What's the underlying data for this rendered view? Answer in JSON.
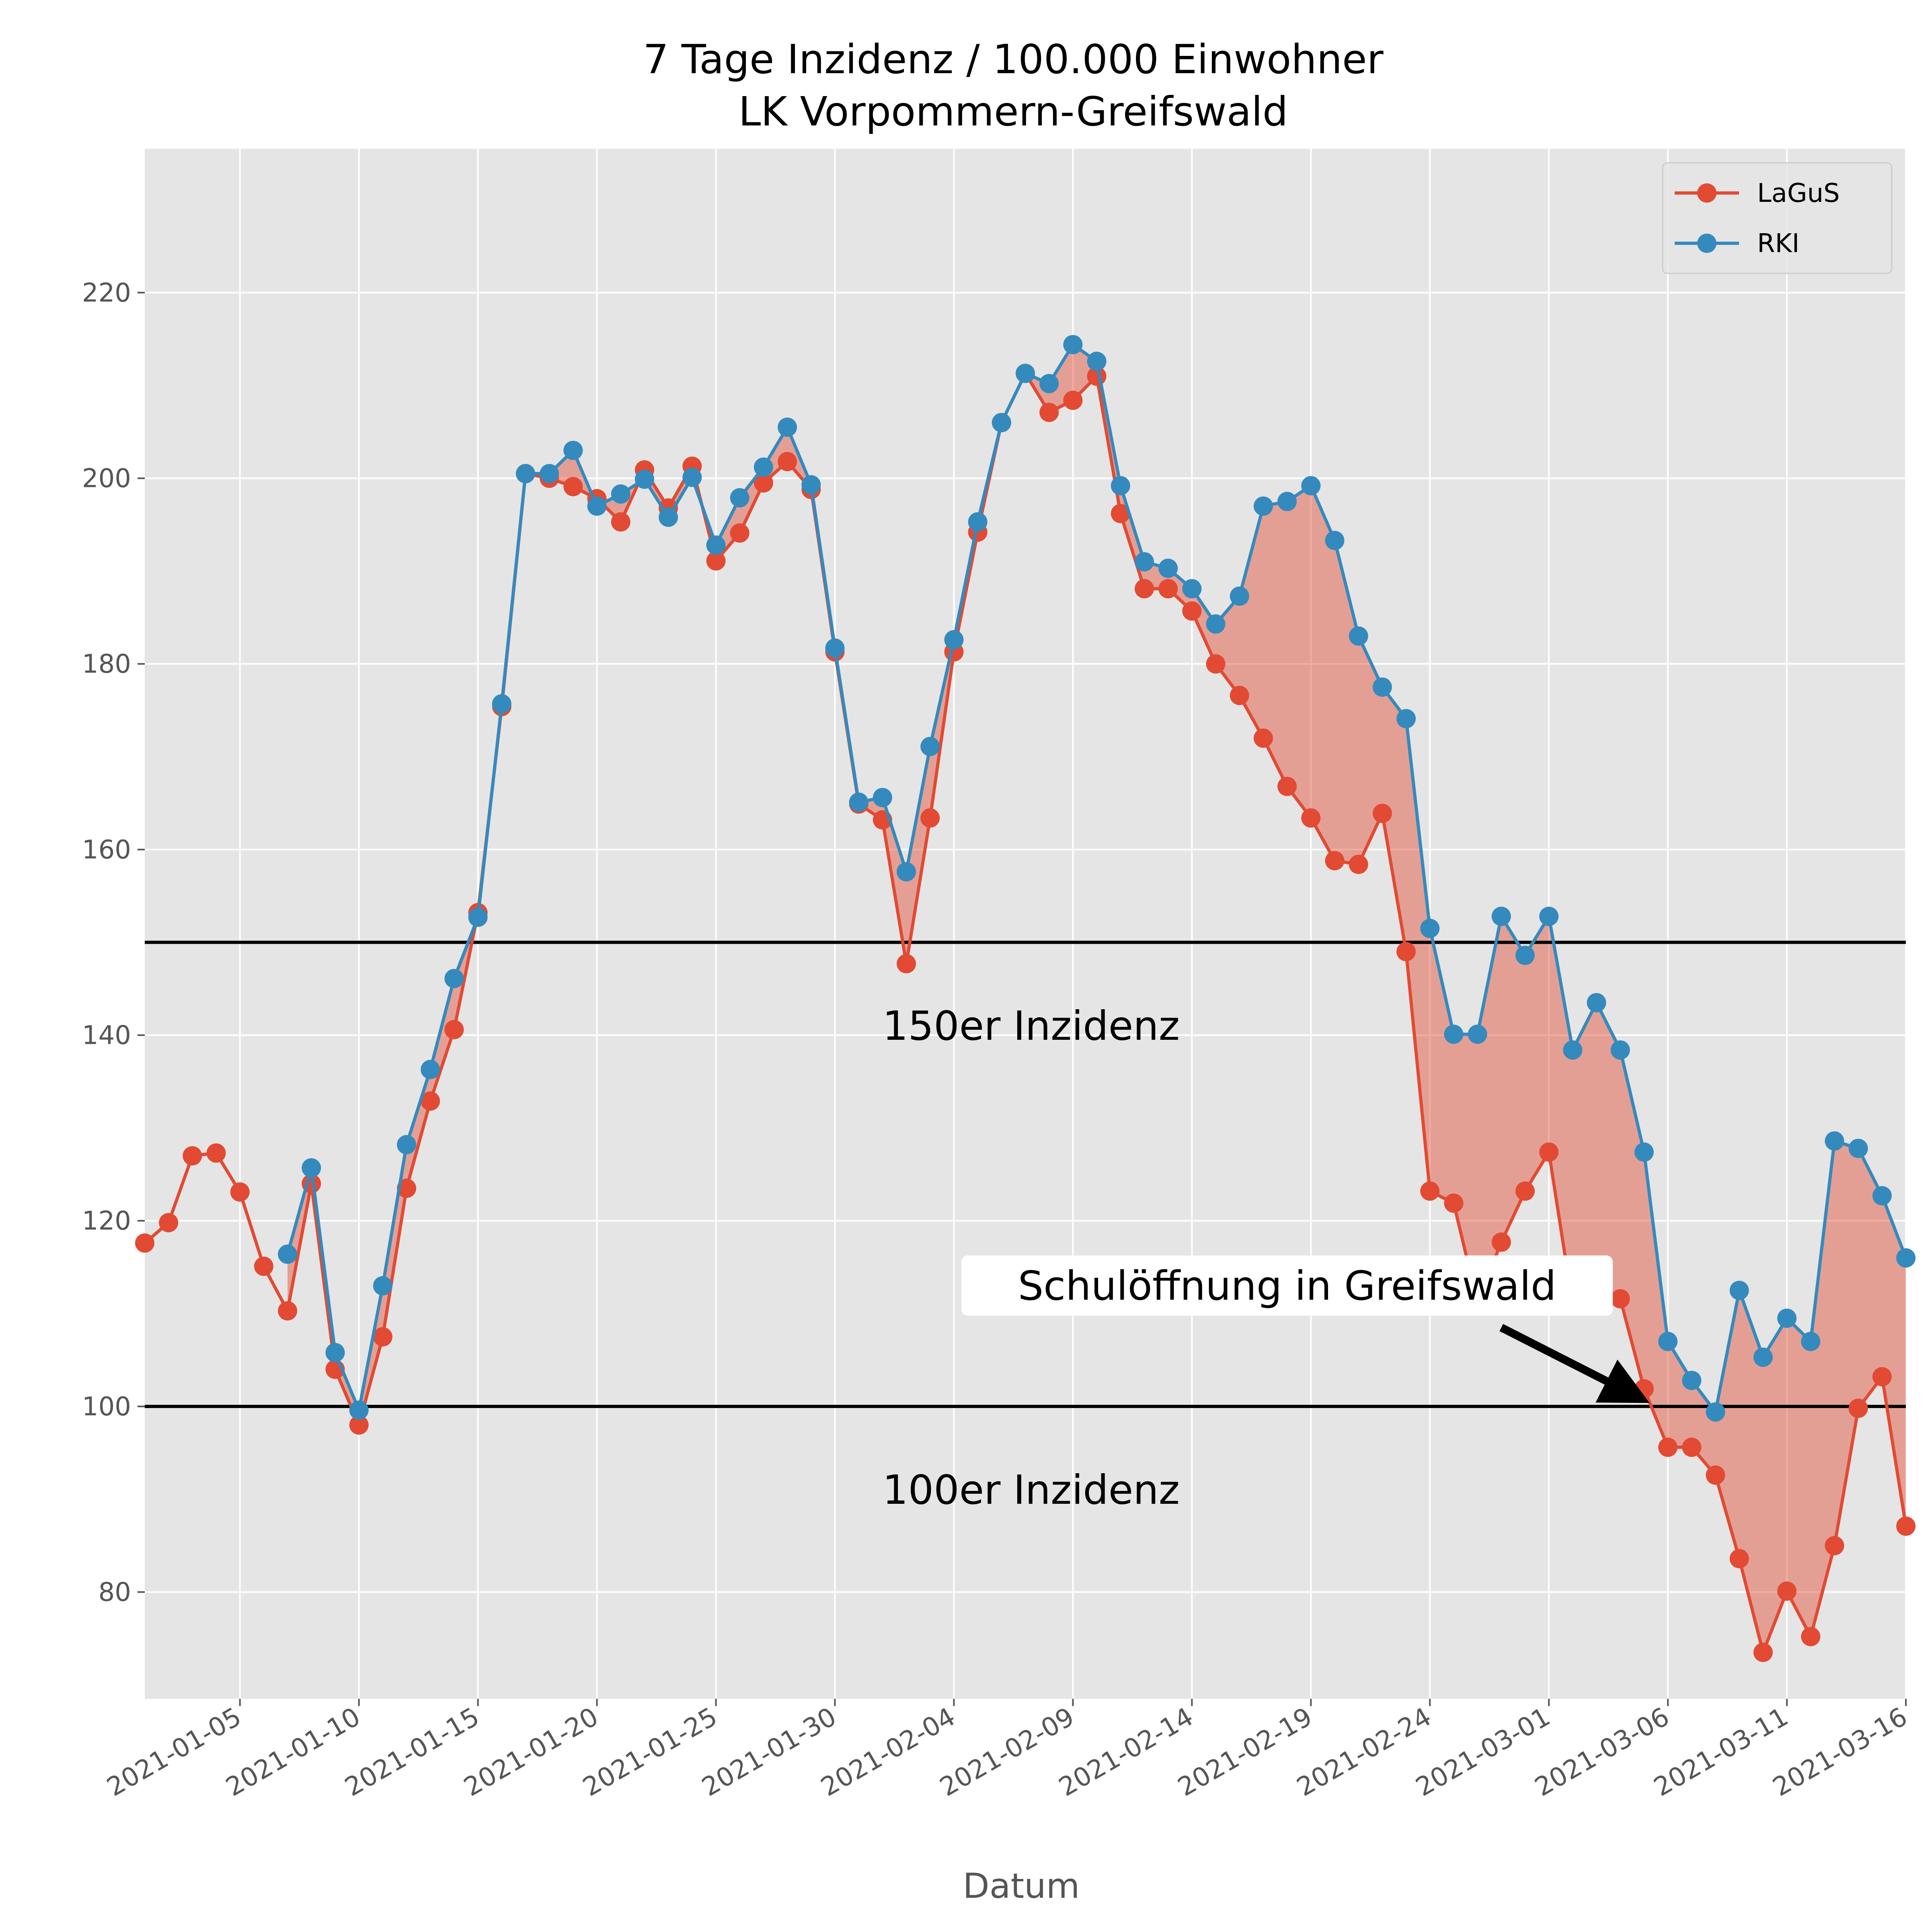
{
  "chart_data": {
    "type": "line",
    "title": "7 Tage Inzidenz / 100.000 Einwohner",
    "subtitle": "LK Vorpommern-Greifswald",
    "xlabel": "Datum",
    "ylabel": "",
    "x_start": "2021-01-01",
    "x_end": "2021-03-16",
    "ylim": [
      68.5,
      235.5
    ],
    "yticks": [
      80,
      100,
      120,
      140,
      160,
      180,
      200,
      220
    ],
    "xticks": [
      "2021-01-05",
      "2021-01-10",
      "2021-01-15",
      "2021-01-20",
      "2021-01-25",
      "2021-01-30",
      "2021-02-04",
      "2021-02-09",
      "2021-02-14",
      "2021-02-19",
      "2021-02-24",
      "2021-03-01",
      "2021-03-06",
      "2021-03-11",
      "2021-03-16"
    ],
    "grid": true,
    "legend_position": "top-right",
    "fill_between": {
      "color": "#E24A33",
      "opacity": 0.45
    },
    "series": [
      {
        "name": "LaGuS",
        "color": "#E24A33",
        "points": [
          [
            "2021-01-01",
            117.6
          ],
          [
            "2021-01-02",
            119.8
          ],
          [
            "2021-01-03",
            127.0
          ],
          [
            "2021-01-04",
            127.3
          ],
          [
            "2021-01-05",
            123.1
          ],
          [
            "2021-01-06",
            115.1
          ],
          [
            "2021-01-07",
            110.3
          ],
          [
            "2021-01-08",
            124.0
          ],
          [
            "2021-01-09",
            104.0
          ],
          [
            "2021-01-10",
            98.0
          ],
          [
            "2021-01-11",
            107.5
          ],
          [
            "2021-01-12",
            123.5
          ],
          [
            "2021-01-13",
            132.9
          ],
          [
            "2021-01-14",
            140.6
          ],
          [
            "2021-01-15",
            153.2
          ],
          [
            "2021-01-16",
            175.4
          ],
          [
            "2021-01-17",
            200.5
          ],
          [
            "2021-01-18",
            200.0
          ],
          [
            "2021-01-19",
            199.1
          ],
          [
            "2021-01-20",
            197.8
          ],
          [
            "2021-01-21",
            195.3
          ],
          [
            "2021-01-22",
            200.9
          ],
          [
            "2021-01-23",
            196.8
          ],
          [
            "2021-01-24",
            201.3
          ],
          [
            "2021-01-25",
            191.1
          ],
          [
            "2021-01-26",
            194.1
          ],
          [
            "2021-01-27",
            199.5
          ],
          [
            "2021-01-28",
            201.8
          ],
          [
            "2021-01-29",
            198.8
          ],
          [
            "2021-01-30",
            181.3
          ],
          [
            "2021-01-31",
            164.9
          ],
          [
            "2021-02-01",
            163.2
          ],
          [
            "2021-02-02",
            147.7
          ],
          [
            "2021-02-03",
            163.4
          ],
          [
            "2021-02-04",
            181.3
          ],
          [
            "2021-02-05",
            194.2
          ],
          [
            "2021-02-06",
            206.0
          ],
          [
            "2021-02-07",
            211.3
          ],
          [
            "2021-02-08",
            207.1
          ],
          [
            "2021-02-09",
            208.4
          ],
          [
            "2021-02-10",
            211.0
          ],
          [
            "2021-02-11",
            196.2
          ],
          [
            "2021-02-12",
            188.1
          ],
          [
            "2021-02-13",
            188.1
          ],
          [
            "2021-02-14",
            185.7
          ],
          [
            "2021-02-15",
            180.0
          ],
          [
            "2021-02-16",
            176.6
          ],
          [
            "2021-02-17",
            172.0
          ],
          [
            "2021-02-18",
            166.8
          ],
          [
            "2021-02-19",
            163.4
          ],
          [
            "2021-02-20",
            158.8
          ],
          [
            "2021-02-21",
            158.4
          ],
          [
            "2021-02-22",
            163.9
          ],
          [
            "2021-02-23",
            149.0
          ],
          [
            "2021-02-24",
            123.2
          ],
          [
            "2021-02-25",
            121.9
          ],
          [
            "2021-02-26",
            111.2
          ],
          [
            "2021-02-27",
            117.7
          ],
          [
            "2021-02-28",
            123.2
          ],
          [
            "2021-03-01",
            127.4
          ],
          [
            "2021-03-02",
            111.0
          ],
          [
            "2021-03-03",
            112.5
          ],
          [
            "2021-03-04",
            111.6
          ],
          [
            "2021-03-05",
            101.9
          ],
          [
            "2021-03-06",
            95.6
          ],
          [
            "2021-03-07",
            95.6
          ],
          [
            "2021-03-08",
            92.6
          ],
          [
            "2021-03-09",
            83.6
          ],
          [
            "2021-03-10",
            73.5
          ],
          [
            "2021-03-11",
            80.1
          ],
          [
            "2021-03-12",
            75.2
          ],
          [
            "2021-03-13",
            85.0
          ],
          [
            "2021-03-14",
            99.8
          ],
          [
            "2021-03-15",
            103.2
          ],
          [
            "2021-03-16",
            87.1
          ]
        ]
      },
      {
        "name": "RKI",
        "color": "#348ABD",
        "points": [
          [
            "2021-01-07",
            116.4
          ],
          [
            "2021-01-08",
            125.7
          ],
          [
            "2021-01-09",
            105.8
          ],
          [
            "2021-01-10",
            99.6
          ],
          [
            "2021-01-11",
            113.0
          ],
          [
            "2021-01-12",
            128.2
          ],
          [
            "2021-01-13",
            136.3
          ],
          [
            "2021-01-14",
            146.1
          ],
          [
            "2021-01-15",
            152.7
          ],
          [
            "2021-01-16",
            175.7
          ],
          [
            "2021-01-17",
            200.5
          ],
          [
            "2021-01-18",
            200.5
          ],
          [
            "2021-01-19",
            203.0
          ],
          [
            "2021-01-20",
            197.0
          ],
          [
            "2021-01-21",
            198.3
          ],
          [
            "2021-01-22",
            199.9
          ],
          [
            "2021-01-23",
            195.8
          ],
          [
            "2021-01-24",
            200.1
          ],
          [
            "2021-01-25",
            192.8
          ],
          [
            "2021-01-26",
            197.9
          ],
          [
            "2021-01-27",
            201.2
          ],
          [
            "2021-01-28",
            205.5
          ],
          [
            "2021-01-29",
            199.3
          ],
          [
            "2021-01-30",
            181.7
          ],
          [
            "2021-01-31",
            165.1
          ],
          [
            "2021-02-01",
            165.6
          ],
          [
            "2021-02-02",
            157.6
          ],
          [
            "2021-02-03",
            171.1
          ],
          [
            "2021-02-04",
            182.6
          ],
          [
            "2021-02-05",
            195.3
          ],
          [
            "2021-02-06",
            206.0
          ],
          [
            "2021-02-07",
            211.3
          ],
          [
            "2021-02-08",
            210.2
          ],
          [
            "2021-02-09",
            214.4
          ],
          [
            "2021-02-10",
            212.6
          ],
          [
            "2021-02-11",
            199.2
          ],
          [
            "2021-02-12",
            191.0
          ],
          [
            "2021-02-13",
            190.3
          ],
          [
            "2021-02-14",
            188.1
          ],
          [
            "2021-02-15",
            184.3
          ],
          [
            "2021-02-16",
            187.3
          ],
          [
            "2021-02-17",
            197.0
          ],
          [
            "2021-02-18",
            197.5
          ],
          [
            "2021-02-19",
            199.2
          ],
          [
            "2021-02-20",
            193.3
          ],
          [
            "2021-02-21",
            183.0
          ],
          [
            "2021-02-22",
            177.5
          ],
          [
            "2021-02-23",
            174.1
          ],
          [
            "2021-02-24",
            151.5
          ],
          [
            "2021-02-25",
            140.1
          ],
          [
            "2021-02-26",
            140.1
          ],
          [
            "2021-02-27",
            152.8
          ],
          [
            "2021-02-28",
            148.6
          ],
          [
            "2021-03-01",
            152.8
          ],
          [
            "2021-03-02",
            138.4
          ],
          [
            "2021-03-03",
            143.5
          ],
          [
            "2021-03-04",
            138.4
          ],
          [
            "2021-03-05",
            127.4
          ],
          [
            "2021-03-06",
            107.0
          ],
          [
            "2021-03-07",
            102.8
          ],
          [
            "2021-03-08",
            99.4
          ],
          [
            "2021-03-09",
            112.5
          ],
          [
            "2021-03-10",
            105.3
          ],
          [
            "2021-03-11",
            109.5
          ],
          [
            "2021-03-12",
            107.0
          ],
          [
            "2021-03-13",
            128.6
          ],
          [
            "2021-03-14",
            127.8
          ],
          [
            "2021-03-15",
            122.7
          ],
          [
            "2021-03-16",
            116.0
          ]
        ]
      }
    ],
    "hlines": [
      {
        "y": 150,
        "label": "150er Inzidenz",
        "label_x": "2021-02-01",
        "label_y": 139.5
      },
      {
        "y": 100,
        "label": "100er Inzidenz",
        "label_x": "2021-02-01",
        "label_y": 89.5
      }
    ],
    "annotation": {
      "text": "Schulöffnung in Greifswald",
      "text_x": "2021-02-18",
      "text_y": 111.5,
      "arrow_from_x": "2021-02-27",
      "arrow_from_y": 108.5,
      "arrow_to_x": "2021-03-05",
      "arrow_to_y": 101.9
    }
  }
}
